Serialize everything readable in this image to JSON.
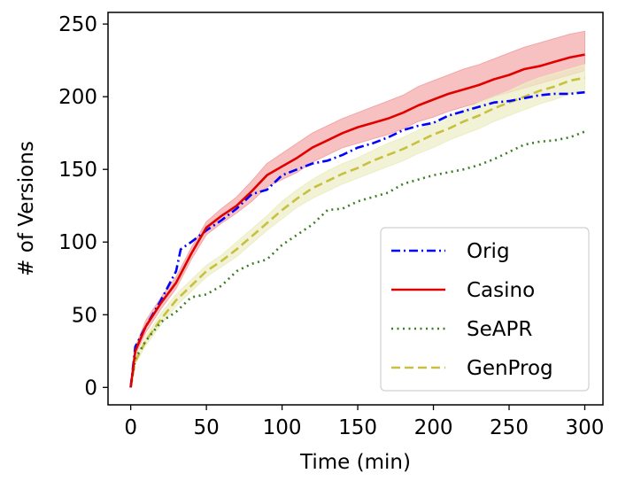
{
  "chart_data": {
    "type": "line",
    "title": "",
    "xlabel": "Time (min)",
    "ylabel": "# of Versions",
    "xlim": [
      -15,
      312
    ],
    "ylim": [
      -12,
      258
    ],
    "xticks": [
      0,
      50,
      100,
      150,
      200,
      250,
      300
    ],
    "yticks": [
      0,
      50,
      100,
      150,
      200,
      250
    ],
    "grid": false,
    "legend_position": "bottom-right",
    "series": [
      {
        "name": "Orig",
        "color": "#0000ff",
        "style": "dashdot",
        "x": [
          0,
          3,
          10,
          20,
          30,
          33,
          40,
          50,
          60,
          70,
          80,
          90,
          100,
          110,
          120,
          130,
          140,
          150,
          160,
          170,
          180,
          190,
          200,
          210,
          220,
          230,
          240,
          250,
          260,
          270,
          280,
          290,
          300
        ],
        "y": [
          0,
          28,
          42,
          60,
          80,
          95,
          100,
          108,
          115,
          123,
          133,
          136,
          146,
          150,
          154,
          156,
          160,
          165,
          168,
          172,
          177,
          180,
          182,
          187,
          190,
          193,
          196,
          197,
          199,
          201,
          202,
          202,
          203
        ]
      },
      {
        "name": "Casino",
        "color": "#e00000",
        "style": "solid",
        "band": true,
        "band_color": "#f4a6a6",
        "x": [
          0,
          3,
          10,
          20,
          30,
          40,
          50,
          60,
          70,
          80,
          90,
          100,
          110,
          120,
          130,
          140,
          150,
          160,
          170,
          180,
          190,
          200,
          210,
          220,
          230,
          240,
          250,
          260,
          270,
          280,
          290,
          300
        ],
        "y": [
          0,
          25,
          42,
          58,
          72,
          92,
          110,
          118,
          125,
          135,
          146,
          152,
          158,
          165,
          170,
          175,
          179,
          182,
          185,
          189,
          194,
          198,
          202,
          205,
          208,
          212,
          215,
          219,
          221,
          224,
          227,
          229
        ],
        "y_lower": [
          0,
          22,
          38,
          54,
          68,
          88,
          105,
          113,
          120,
          128,
          138,
          143,
          148,
          155,
          160,
          165,
          168,
          171,
          174,
          178,
          183,
          186,
          190,
          193,
          196,
          200,
          203,
          206,
          209,
          212,
          215,
          218
        ],
        "y_upper": [
          0,
          28,
          46,
          62,
          76,
          96,
          114,
          123,
          131,
          142,
          154,
          161,
          168,
          175,
          180,
          185,
          189,
          193,
          197,
          201,
          207,
          211,
          215,
          219,
          222,
          226,
          230,
          234,
          237,
          240,
          243,
          245
        ]
      },
      {
        "name": "SeAPR",
        "color": "#3a7d22",
        "style": "dotted",
        "x": [
          0,
          3,
          10,
          20,
          30,
          40,
          50,
          60,
          70,
          80,
          90,
          100,
          110,
          120,
          130,
          140,
          150,
          160,
          170,
          180,
          190,
          200,
          210,
          220,
          230,
          240,
          250,
          260,
          270,
          280,
          290,
          300
        ],
        "y": [
          0,
          20,
          32,
          45,
          52,
          62,
          64,
          70,
          80,
          85,
          88,
          98,
          105,
          112,
          122,
          123,
          128,
          131,
          134,
          140,
          143,
          146,
          148,
          150,
          153,
          157,
          162,
          167,
          169,
          170,
          172,
          176
        ]
      },
      {
        "name": "GenProg",
        "color": "#c8c040",
        "style": "dashed",
        "band": true,
        "band_color": "#eceec4",
        "x": [
          0,
          3,
          10,
          20,
          30,
          40,
          50,
          60,
          70,
          80,
          90,
          100,
          110,
          120,
          130,
          140,
          150,
          160,
          170,
          180,
          190,
          200,
          210,
          220,
          230,
          240,
          250,
          260,
          270,
          280,
          290,
          300
        ],
        "y": [
          0,
          18,
          32,
          47,
          60,
          70,
          80,
          87,
          95,
          104,
          113,
          122,
          130,
          137,
          142,
          147,
          151,
          156,
          160,
          164,
          169,
          174,
          178,
          183,
          187,
          192,
          196,
          200,
          204,
          207,
          211,
          213
        ],
        "y_lower": [
          0,
          16,
          29,
          43,
          56,
          66,
          76,
          83,
          90,
          99,
          108,
          116,
          124,
          130,
          135,
          140,
          144,
          148,
          152,
          156,
          161,
          165,
          170,
          174,
          178,
          183,
          187,
          191,
          195,
          198,
          202,
          204
        ],
        "y_upper": [
          0,
          20,
          35,
          51,
          64,
          74,
          84,
          91,
          100,
          109,
          118,
          128,
          136,
          143,
          149,
          154,
          158,
          163,
          168,
          172,
          177,
          182,
          187,
          191,
          196,
          200,
          204,
          209,
          213,
          216,
          219,
          222
        ]
      }
    ]
  }
}
